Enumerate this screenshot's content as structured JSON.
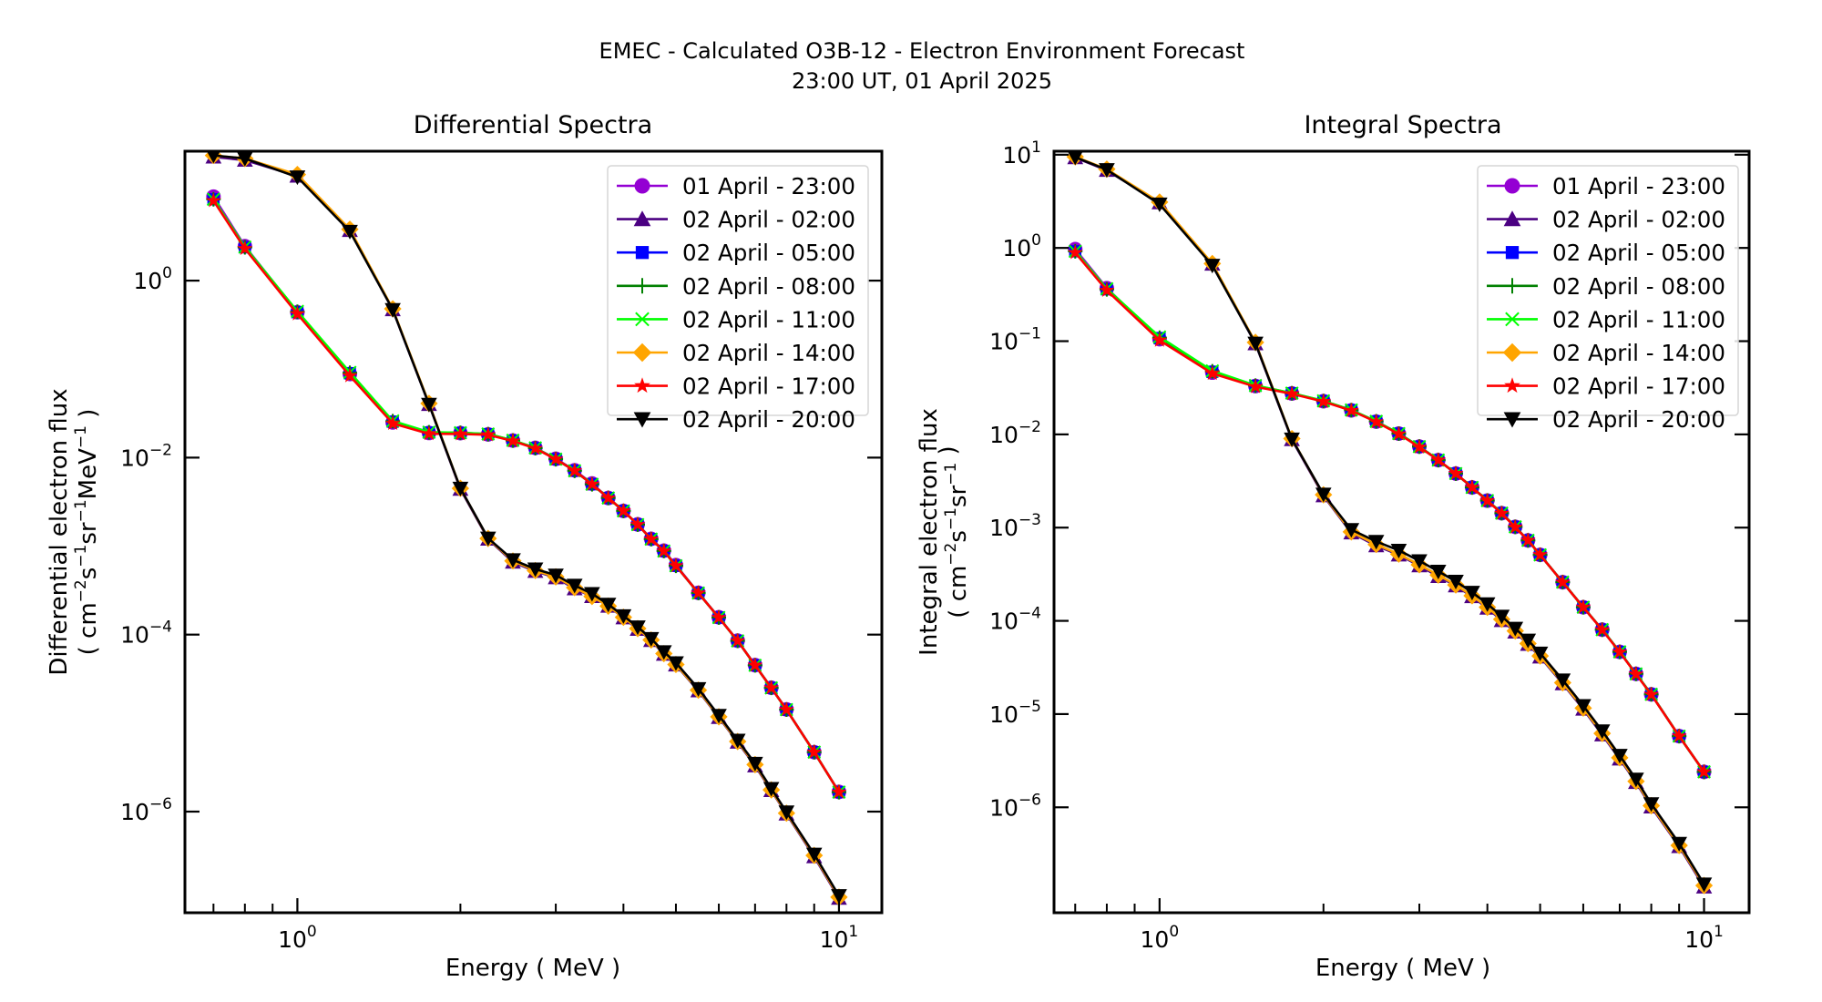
{
  "figure": {
    "suptitle_line1": "EMEC - Calculated O3B-12 - Electron Environment Forecast",
    "suptitle_line2": "23:00 UT, 01 April 2025"
  },
  "series_styles": [
    {
      "name": "01 April - 23:00",
      "color": "#9400d3",
      "marker": "circle"
    },
    {
      "name": "02 April - 02:00",
      "color": "#4b0082",
      "marker": "triangle-up"
    },
    {
      "name": "02 April - 05:00",
      "color": "#0000ff",
      "marker": "square"
    },
    {
      "name": "02 April - 08:00",
      "color": "#008000",
      "marker": "plus"
    },
    {
      "name": "02 April - 11:00",
      "color": "#00ff00",
      "marker": "x"
    },
    {
      "name": "02 April - 14:00",
      "color": "#ffa500",
      "marker": "diamond"
    },
    {
      "name": "02 April - 17:00",
      "color": "#ff0000",
      "marker": "star"
    },
    {
      "name": "02 April - 20:00",
      "color": "#000000",
      "marker": "triangle-down"
    }
  ],
  "chart_data": [
    {
      "type": "line",
      "title": "Differential Spectra",
      "xlabel": "Energy ( MeV )",
      "ylabel_line1": "Differential electron flux",
      "ylabel_line2_parts": [
        "( cm",
        "−2",
        "s",
        "−1",
        "sr",
        "−1",
        "MeV",
        "−1",
        " )"
      ],
      "xscale": "log",
      "yscale": "log",
      "xlim": [
        0.62,
        12.0
      ],
      "ylim": [
        7.2e-08,
        29
      ],
      "xticks": [
        {
          "value": 1,
          "base": "10",
          "exp": "0"
        },
        {
          "value": 10,
          "base": "10",
          "exp": "1"
        }
      ],
      "yticks": [
        {
          "value": 1,
          "base": "10",
          "exp": "0"
        },
        {
          "value": 0.01,
          "base": "10",
          "exp": "−2"
        },
        {
          "value": 0.0001,
          "base": "10",
          "exp": "−4"
        },
        {
          "value": 1e-06,
          "base": "10",
          "exp": "−6"
        }
      ],
      "legend_position": "upper right",
      "grid": false,
      "x": [
        0.7,
        0.8,
        1.0,
        1.25,
        1.5,
        1.75,
        2.0,
        2.25,
        2.5,
        2.75,
        3.0,
        3.25,
        3.5,
        3.75,
        4.0,
        4.25,
        4.5,
        4.75,
        5.0,
        5.5,
        6.0,
        6.5,
        7.0,
        7.5,
        8.0,
        9.0,
        10.0
      ],
      "series": [
        {
          "name": "01 April - 23:00",
          "values": [
            8.9,
            2.45,
            0.44,
            0.088,
            0.025,
            0.019,
            0.0189,
            0.0183,
            0.0156,
            0.0129,
            0.0097,
            0.0072,
            0.0051,
            0.0035,
            0.0025,
            0.00176,
            0.00121,
            0.00089,
            0.00061,
            0.000297,
            0.000157,
            8.55e-05,
            4.52e-05,
            2.51e-05,
            1.43e-05,
            4.7e-06,
            1.67e-06
          ]
        },
        {
          "name": "02 April - 02:00",
          "values": [
            25,
            23,
            15.2,
            3.7,
            0.47,
            0.04,
            0.0044,
            0.0012,
            0.00066,
            0.00052,
            0.00044,
            0.00033,
            0.00027,
            0.00021,
            0.000155,
            0.000115,
            8.6e-05,
            6e-05,
            4.55e-05,
            2.32e-05,
            1.16e-05,
            6.1e-06,
            3.3e-06,
            1.73e-06,
            9.4e-07,
            3.1e-07,
            1.05e-07
          ]
        },
        {
          "name": "02 April - 05:00",
          "values": [
            8.3,
            2.38,
            0.44,
            0.09,
            0.0255,
            0.0192,
            0.019,
            0.0184,
            0.0156,
            0.0128,
            0.0096,
            0.0071,
            0.005,
            0.0035,
            0.0025,
            0.00175,
            0.0012,
            0.00088,
            0.0006,
            0.000295,
            0.000156,
            8.5e-05,
            4.5e-05,
            2.5e-05,
            1.42e-05,
            4.7e-06,
            1.66e-06
          ]
        },
        {
          "name": "02 April - 08:00",
          "values": [
            8.3,
            2.38,
            0.445,
            0.091,
            0.0258,
            0.0193,
            0.0191,
            0.0184,
            0.0156,
            0.0128,
            0.0096,
            0.0071,
            0.005,
            0.0035,
            0.0025,
            0.00175,
            0.0012,
            0.00088,
            0.0006,
            0.000295,
            0.000156,
            8.5e-05,
            4.5e-05,
            2.5e-05,
            1.42e-05,
            4.7e-06,
            1.66e-06
          ]
        },
        {
          "name": "02 April - 11:00",
          "values": [
            8.3,
            2.4,
            0.45,
            0.092,
            0.026,
            0.0194,
            0.0191,
            0.0185,
            0.0157,
            0.0129,
            0.0096,
            0.0071,
            0.005,
            0.0035,
            0.0025,
            0.00175,
            0.0012,
            0.00088,
            0.0006,
            0.000295,
            0.000156,
            8.5e-05,
            4.5e-05,
            2.5e-05,
            1.42e-05,
            4.7e-06,
            1.66e-06
          ]
        },
        {
          "name": "02 April - 14:00",
          "values": [
            26,
            24,
            15.8,
            3.8,
            0.48,
            0.041,
            0.0045,
            0.00122,
            0.00068,
            0.00053,
            0.00045,
            0.00034,
            0.00027,
            0.00021,
            0.000157,
            0.000117,
            8.7e-05,
            6.1e-05,
            4.6e-05,
            2.36e-05,
            1.18e-05,
            6.2e-06,
            3.4e-06,
            1.76e-06,
            9.6e-07,
            3.2e-07,
            1.08e-07
          ]
        },
        {
          "name": "02 April - 17:00",
          "values": [
            8.0,
            2.3,
            0.42,
            0.084,
            0.0243,
            0.0186,
            0.0185,
            0.0181,
            0.0154,
            0.0127,
            0.0096,
            0.0071,
            0.005,
            0.0035,
            0.0025,
            0.00175,
            0.0012,
            0.00088,
            0.0006,
            0.000295,
            0.000156,
            8.5e-05,
            4.5e-05,
            2.5e-05,
            1.42e-05,
            4.7e-06,
            1.66e-06
          ]
        },
        {
          "name": "02 April - 20:00",
          "values": [
            26,
            24,
            14.8,
            3.6,
            0.47,
            0.04,
            0.0045,
            0.00123,
            0.0007,
            0.00055,
            0.00047,
            0.00036,
            0.00029,
            0.00022,
            0.000163,
            0.000122,
            9e-05,
            6.4e-05,
            4.8e-05,
            2.45e-05,
            1.22e-05,
            6.4e-06,
            3.5e-06,
            1.82e-06,
            9.9e-07,
            3.3e-07,
            1.12e-07
          ]
        }
      ]
    },
    {
      "type": "line",
      "title": "Integral Spectra",
      "xlabel": "Energy ( MeV )",
      "ylabel_line1": "Integral electron flux",
      "ylabel_line2_parts": [
        "( cm",
        "−2",
        "s",
        "−1",
        "sr",
        "−1",
        "",
        "",
        " )"
      ],
      "xscale": "log",
      "yscale": "log",
      "xlim": [
        0.64,
        12.1
      ],
      "ylim": [
        7.4e-08,
        10.9
      ],
      "xticks": [
        {
          "value": 1,
          "base": "10",
          "exp": "0"
        },
        {
          "value": 10,
          "base": "10",
          "exp": "1"
        }
      ],
      "yticks": [
        {
          "value": 10,
          "base": "10",
          "exp": "1"
        },
        {
          "value": 1,
          "base": "10",
          "exp": "0"
        },
        {
          "value": 0.1,
          "base": "10",
          "exp": "−1"
        },
        {
          "value": 0.01,
          "base": "10",
          "exp": "−2"
        },
        {
          "value": 0.001,
          "base": "10",
          "exp": "−3"
        },
        {
          "value": 0.0001,
          "base": "10",
          "exp": "−4"
        },
        {
          "value": 1e-05,
          "base": "10",
          "exp": "−5"
        },
        {
          "value": 1e-06,
          "base": "10",
          "exp": "−6"
        }
      ],
      "legend_position": "upper right",
      "grid": false,
      "x": [
        0.7,
        0.8,
        1.0,
        1.25,
        1.5,
        1.75,
        2.0,
        2.25,
        2.5,
        2.75,
        3.0,
        3.25,
        3.5,
        3.75,
        4.0,
        4.25,
        4.5,
        4.75,
        5.0,
        5.5,
        6.0,
        6.5,
        7.0,
        7.5,
        8.0,
        9.0,
        10.0
      ],
      "series": [
        {
          "name": "01 April - 23:00",
          "values": [
            0.97,
            0.37,
            0.105,
            0.046,
            0.033,
            0.0275,
            0.0227,
            0.0181,
            0.0137,
            0.0102,
            0.0074,
            0.0053,
            0.0038,
            0.0027,
            0.00195,
            0.00143,
            0.00102,
            0.00073,
            0.00051,
            0.00026,
            0.00014,
            8.05e-05,
            4.65e-05,
            2.7e-05,
            1.63e-05,
            5.8e-06,
            2.4e-06
          ]
        },
        {
          "name": "02 April - 02:00",
          "values": [
            9.3,
            6.8,
            3.05,
            0.67,
            0.094,
            0.0088,
            0.0022,
            0.00088,
            0.00064,
            0.00051,
            0.00039,
            0.0003,
            0.000238,
            0.000182,
            0.000137,
            0.000101,
            7.6e-05,
            5.6e-05,
            4.1e-05,
            2.12e-05,
            1.13e-05,
            6e-06,
            3.3e-06,
            1.85e-06,
            1.01e-06,
            3.8e-07,
            1.4e-07
          ]
        },
        {
          "name": "02 April - 05:00",
          "values": [
            0.92,
            0.36,
            0.108,
            0.047,
            0.0332,
            0.0276,
            0.0228,
            0.0182,
            0.0138,
            0.0102,
            0.0074,
            0.0053,
            0.0038,
            0.0027,
            0.00195,
            0.00143,
            0.00102,
            0.00073,
            0.00051,
            0.00026,
            0.00014,
            8.05e-05,
            4.65e-05,
            2.7e-05,
            1.63e-05,
            5.8e-06,
            2.4e-06
          ]
        },
        {
          "name": "02 April - 08:00",
          "values": [
            0.92,
            0.36,
            0.109,
            0.0475,
            0.0333,
            0.0276,
            0.0228,
            0.0182,
            0.0138,
            0.0102,
            0.0074,
            0.0053,
            0.0038,
            0.0027,
            0.00195,
            0.00143,
            0.00102,
            0.00073,
            0.00051,
            0.00026,
            0.00014,
            8.05e-05,
            4.65e-05,
            2.7e-05,
            1.63e-05,
            5.8e-06,
            2.4e-06
          ]
        },
        {
          "name": "02 April - 11:00",
          "values": [
            0.92,
            0.365,
            0.111,
            0.048,
            0.0335,
            0.0277,
            0.0229,
            0.0183,
            0.0138,
            0.0102,
            0.0074,
            0.0053,
            0.0038,
            0.0027,
            0.00195,
            0.00143,
            0.00102,
            0.00073,
            0.00051,
            0.00026,
            0.00014,
            8.05e-05,
            4.65e-05,
            2.7e-05,
            1.63e-05,
            5.8e-06,
            2.4e-06
          ]
        },
        {
          "name": "02 April - 14:00",
          "values": [
            9.5,
            7.0,
            3.1,
            0.68,
            0.097,
            0.009,
            0.00225,
            0.0009,
            0.00066,
            0.00052,
            0.0004,
            0.00031,
            0.000243,
            0.000186,
            0.00014,
            0.000104,
            7.8e-05,
            5.7e-05,
            4.2e-05,
            2.17e-05,
            1.16e-05,
            6.2e-06,
            3.4e-06,
            1.9e-06,
            1.04e-06,
            3.9e-07,
            1.45e-07
          ]
        },
        {
          "name": "02 April - 17:00",
          "values": [
            0.89,
            0.35,
            0.102,
            0.045,
            0.0325,
            0.0272,
            0.0225,
            0.018,
            0.0136,
            0.0101,
            0.0073,
            0.0053,
            0.0038,
            0.0027,
            0.00194,
            0.00142,
            0.00101,
            0.00073,
            0.00051,
            0.000259,
            0.00014,
            8e-05,
            4.62e-05,
            2.68e-05,
            1.62e-05,
            5.8e-06,
            2.4e-06
          ]
        },
        {
          "name": "02 April - 20:00",
          "values": [
            9.4,
            6.9,
            2.95,
            0.65,
            0.095,
            0.0089,
            0.00228,
            0.00095,
            0.00071,
            0.00057,
            0.00044,
            0.00034,
            0.000265,
            0.000202,
            0.000152,
            0.000112,
            8.3e-05,
            6.2e-05,
            4.5e-05,
            2.32e-05,
            1.23e-05,
            6.6e-06,
            3.6e-06,
            2e-06,
            1.09e-06,
            4.1e-07,
            1.5e-07
          ]
        }
      ]
    }
  ]
}
